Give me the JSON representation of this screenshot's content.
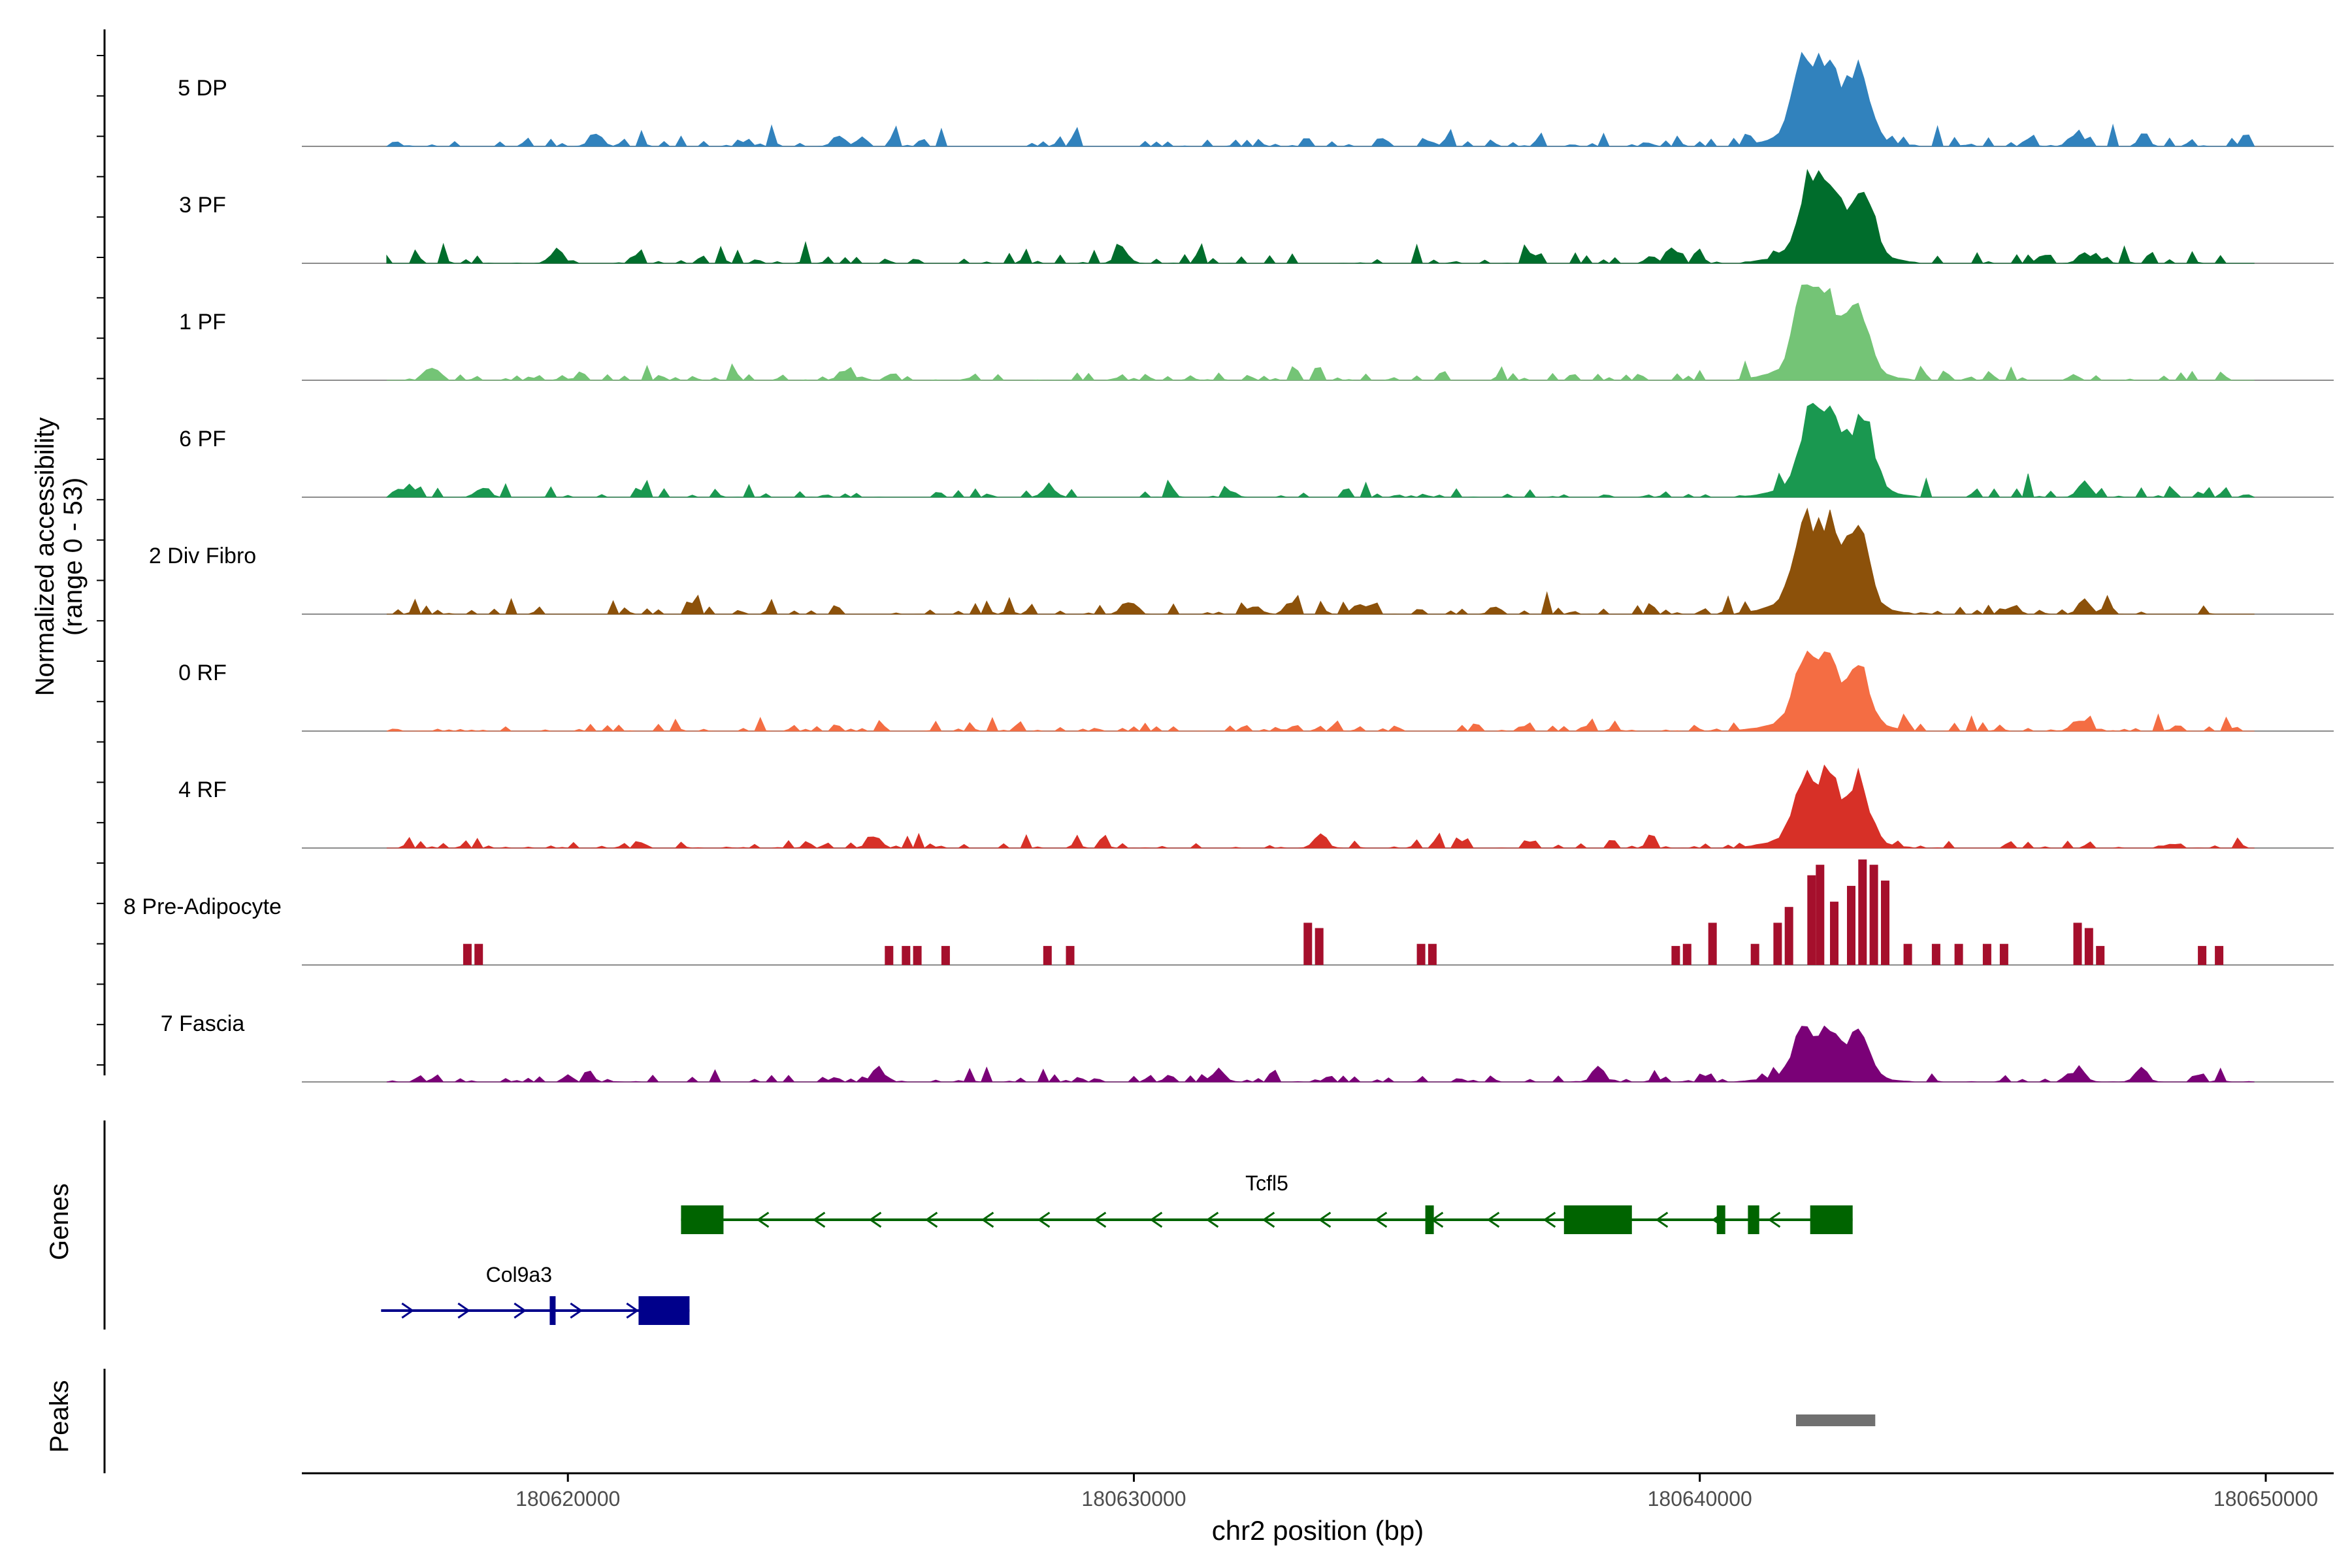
{
  "chart_data": {
    "type": "area",
    "title": "",
    "xlabel": "chr2 position (bp)",
    "ylabel": "Normalized accessibility",
    "ylabel_range": "(range 0 - 53)",
    "xlim": [
      180615300,
      180651200
    ],
    "ylim": [
      0,
      53
    ],
    "x_ticks": [
      180620000,
      180630000,
      180640000,
      180650000
    ],
    "x_tick_labels": [
      "180620000",
      "180630000",
      "180640000",
      "180650000"
    ],
    "bin_size_bp": 100,
    "data_range_bp": [
      180616800,
      180649800
    ],
    "tracks": [
      {
        "name": "5 DP",
        "color": "#3182bd",
        "style": "smooth",
        "peak_center": 180642200,
        "peak_height": 0.92,
        "peaks": [
          180642000,
          180642350,
          180642750,
          180646700,
          180620500,
          180624800
        ],
        "minor": [
          [
            180616800,
            180621000,
            0.06
          ],
          [
            180621000,
            180631000,
            0.1
          ],
          [
            180631000,
            180640500,
            0.08
          ],
          [
            180640500,
            180649800,
            0.12
          ]
        ]
      },
      {
        "name": "3 PF",
        "color": "#006d2c",
        "style": "smooth",
        "peak_center": 180642300,
        "peak_height": 0.9,
        "peaks": [
          180641800,
          180642200,
          180642700,
          180619800,
          180629800,
          180639500,
          180646800
        ],
        "minor": [
          [
            180616800,
            180620000,
            0.1
          ],
          [
            180620000,
            180631000,
            0.1
          ],
          [
            180631000,
            180640500,
            0.1
          ],
          [
            180640500,
            180649800,
            0.12
          ]
        ]
      },
      {
        "name": "1 PF",
        "color": "#74c476",
        "style": "smooth",
        "peak_center": 180642200,
        "peak_height": 0.9,
        "peaks": [
          180642000,
          180642400,
          180642800,
          180643300,
          180617600,
          180624900
        ],
        "minor": [
          [
            180616800,
            180620000,
            0.08
          ],
          [
            180620000,
            180631000,
            0.08
          ],
          [
            180631000,
            180640500,
            0.07
          ],
          [
            180640500,
            180649800,
            0.1
          ]
        ]
      },
      {
        "name": "6 PF",
        "color": "#1a9850",
        "style": "smooth",
        "peak_center": 180642300,
        "peak_height": 0.88,
        "peaks": [
          180642000,
          180642300,
          180642700,
          180617200,
          180618500,
          180628500,
          180646800
        ],
        "minor": [
          [
            180616800,
            180620000,
            0.1
          ],
          [
            180620000,
            180631000,
            0.09
          ],
          [
            180631000,
            180640500,
            0.08
          ],
          [
            180640500,
            180649800,
            0.12
          ]
        ]
      },
      {
        "name": "2 Div Fibro",
        "color": "#8c510a",
        "style": "smooth",
        "peak_center": 180642200,
        "peak_height": 1.0,
        "peaks": [
          180641900,
          180642200,
          180642700,
          180643000,
          180629900,
          180634000,
          180646800
        ],
        "minor": [
          [
            180617000,
            180620000,
            0.08
          ],
          [
            180620000,
            180631000,
            0.1
          ],
          [
            180631000,
            180640500,
            0.11
          ],
          [
            180640500,
            180649800,
            0.1
          ]
        ]
      },
      {
        "name": "0 RF",
        "color": "#f46d43",
        "style": "smooth",
        "peak_center": 180642200,
        "peak_height": 0.8,
        "peaks": [
          180642000,
          180642300,
          180642800,
          180646700
        ],
        "minor": [
          [
            180616800,
            180620000,
            0.05
          ],
          [
            180620000,
            180631000,
            0.07
          ],
          [
            180631000,
            180640500,
            0.06
          ],
          [
            180640500,
            180649800,
            0.08
          ]
        ]
      },
      {
        "name": "4 RF",
        "color": "#d73027",
        "style": "smooth",
        "peak_center": 180642200,
        "peak_height": 0.78,
        "peaks": [
          180642000,
          180642300,
          180642700,
          180633300,
          180625400
        ],
        "minor": [
          [
            180616800,
            180620000,
            0.05
          ],
          [
            180620000,
            180631000,
            0.07
          ],
          [
            180631000,
            180640500,
            0.07
          ],
          [
            180640500,
            180649800,
            0.07
          ]
        ]
      },
      {
        "name": "8 Pre-Adipocyte",
        "color": "#a50f2c",
        "style": "blocks",
        "peak_center": 180642500,
        "peak_height": 1.0,
        "blocks": [
          [
            180618150,
            180618300,
            0.2
          ],
          [
            180618350,
            180618500,
            0.2
          ],
          [
            180625600,
            180625750,
            0.18
          ],
          [
            180625900,
            180626050,
            0.18
          ],
          [
            180626100,
            180626250,
            0.18
          ],
          [
            180626600,
            180626750,
            0.18
          ],
          [
            180628400,
            180628550,
            0.18
          ],
          [
            180628800,
            180628950,
            0.18
          ],
          [
            180633000,
            180633150,
            0.4
          ],
          [
            180633200,
            180633350,
            0.35
          ],
          [
            180635000,
            180635150,
            0.2
          ],
          [
            180635200,
            180635350,
            0.2
          ],
          [
            180639500,
            180639650,
            0.18
          ],
          [
            180639700,
            180639850,
            0.2
          ],
          [
            180640150,
            180640300,
            0.4
          ],
          [
            180640900,
            180641050,
            0.2
          ],
          [
            180641300,
            180641450,
            0.4
          ],
          [
            180641500,
            180641650,
            0.55
          ],
          [
            180641900,
            180642050,
            0.85
          ],
          [
            180642050,
            180642200,
            0.95
          ],
          [
            180642300,
            180642450,
            0.6
          ],
          [
            180642600,
            180642750,
            0.75
          ],
          [
            180642800,
            180642950,
            1.0
          ],
          [
            180643000,
            180643150,
            0.95
          ],
          [
            180643200,
            180643350,
            0.8
          ],
          [
            180643600,
            180643750,
            0.2
          ],
          [
            180644100,
            180644250,
            0.2
          ],
          [
            180644500,
            180644650,
            0.2
          ],
          [
            180645000,
            180645150,
            0.2
          ],
          [
            180645300,
            180645450,
            0.2
          ],
          [
            180646600,
            180646750,
            0.4
          ],
          [
            180646800,
            180646950,
            0.35
          ],
          [
            180647000,
            180647150,
            0.18
          ],
          [
            180648800,
            180648950,
            0.18
          ],
          [
            180649100,
            180649250,
            0.18
          ]
        ]
      },
      {
        "name": "7 Fascia",
        "color": "#7a0177",
        "style": "smooth",
        "peak_center": 180642200,
        "peak_height": 0.55,
        "peaks": [
          180642000,
          180642300,
          180642800,
          180625500,
          180631500,
          180638200,
          180646700,
          180647800
        ],
        "minor": [
          [
            180616800,
            180620000,
            0.04
          ],
          [
            180620000,
            180631000,
            0.07
          ],
          [
            180631000,
            180640500,
            0.06
          ],
          [
            180640500,
            180649800,
            0.08
          ]
        ]
      }
    ],
    "genes_label": "Genes",
    "genes": [
      {
        "name": "Tcfl5",
        "color": "#006400",
        "strand": "-",
        "start": 180622000,
        "end": 180642700,
        "exons": [
          [
            180622000,
            180622750
          ],
          [
            180635150,
            180635300
          ],
          [
            180637600,
            180638800
          ],
          [
            180640300,
            180640450
          ],
          [
            180640850,
            180641050
          ],
          [
            180641950,
            180642700
          ]
        ]
      },
      {
        "name": "Col9a3",
        "color": "#00008b",
        "strand": "+",
        "start": 180616700,
        "end": 180622150,
        "exons": [
          [
            180619680,
            180619760
          ],
          [
            180621250,
            180622150
          ]
        ]
      }
    ],
    "peaks_label": "Peaks",
    "peak_regions": [
      [
        180641700,
        180643100
      ]
    ],
    "peak_color": "#707070"
  }
}
